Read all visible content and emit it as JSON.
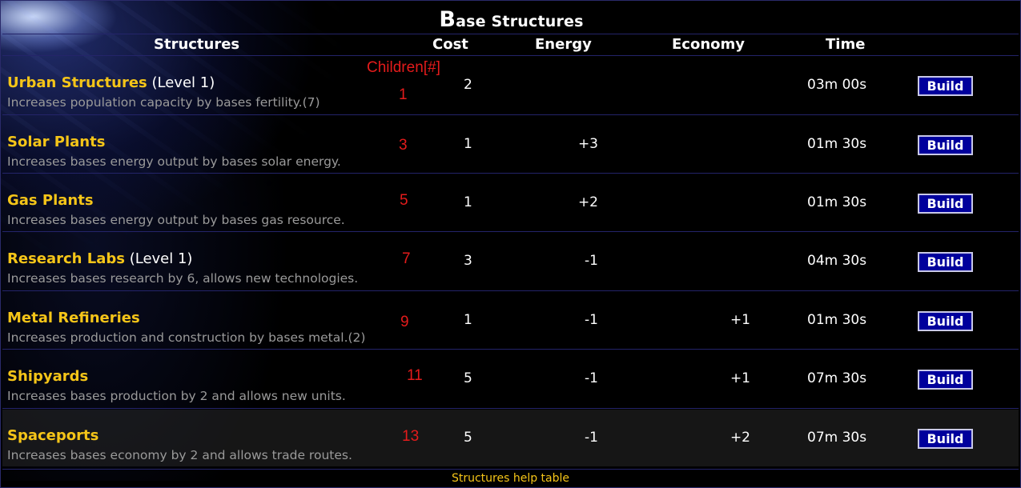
{
  "title_cap": "B",
  "title_rest": "ase Structures",
  "headers": {
    "structures": "Structures",
    "cost": "Cost",
    "energy": "Energy",
    "economy": "Economy",
    "time": "Time"
  },
  "children_label": "Children[#]",
  "rows": [
    {
      "name": "Urban Structures",
      "level": "(Level 1)",
      "desc": "Increases population capacity by bases fertility.(7)",
      "child_num": "1",
      "cost": "2",
      "energy": "",
      "economy": "",
      "time": "03m 00s",
      "button": "Build"
    },
    {
      "name": "Solar Plants",
      "level": "",
      "desc": "Increases bases energy output by bases solar energy.",
      "child_num": "3",
      "cost": "1",
      "energy": "+3",
      "economy": "",
      "time": "01m 30s",
      "button": "Build"
    },
    {
      "name": "Gas Plants",
      "level": "",
      "desc": "Increases bases energy output by bases gas resource.",
      "child_num": "5",
      "cost": "1",
      "energy": "+2",
      "economy": "",
      "time": "01m 30s",
      "button": "Build"
    },
    {
      "name": "Research Labs",
      "level": "(Level 1)",
      "desc": "Increases bases research by 6, allows new technologies.",
      "child_num": "7",
      "cost": "3",
      "energy": "-1",
      "economy": "",
      "time": "04m 30s",
      "button": "Build"
    },
    {
      "name": "Metal Refineries",
      "level": "",
      "desc": "Increases production and construction by bases metal.(2)",
      "child_num": "9",
      "cost": "1",
      "energy": "-1",
      "economy": "+1",
      "time": "01m 30s",
      "button": "Build"
    },
    {
      "name": "Shipyards",
      "level": "",
      "desc": "Increases bases production by 2 and allows new units.",
      "child_num": "11",
      "cost": "5",
      "energy": "-1",
      "economy": "+1",
      "time": "07m 30s",
      "button": "Build"
    },
    {
      "name": "Spaceports",
      "level": "",
      "desc": "Increases bases economy by 2 and allows trade routes.",
      "child_num": "13",
      "cost": "5",
      "energy": "-1",
      "economy": "+2",
      "time": "07m 30s",
      "button": "Build"
    }
  ],
  "footer": "Structures help table",
  "colors": {
    "structure_name": "#f5c518",
    "annotation_red": "#e41b1b",
    "button_bg": "#00009c",
    "description": "#9a9a9a",
    "footer_text": "#f5c518"
  }
}
